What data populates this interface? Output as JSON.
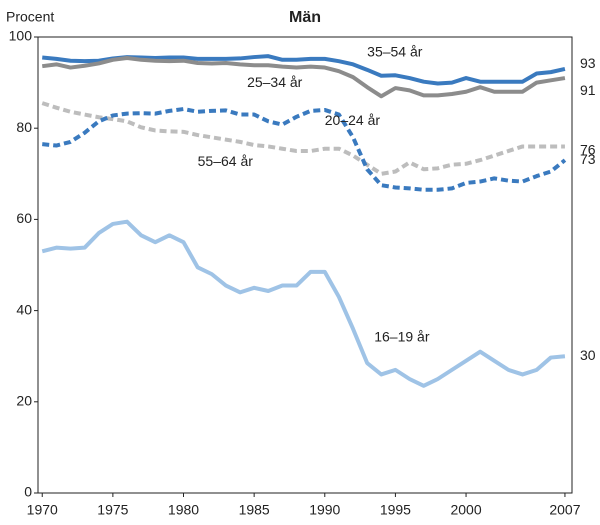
{
  "chart_data": {
    "type": "line",
    "title": "Män",
    "y_label": "Procent",
    "x": [
      1970,
      1971,
      1972,
      1973,
      1974,
      1975,
      1976,
      1977,
      1978,
      1979,
      1980,
      1981,
      1982,
      1983,
      1984,
      1985,
      1986,
      1987,
      1988,
      1989,
      1990,
      1991,
      1992,
      1993,
      1994,
      1995,
      1996,
      1997,
      1998,
      1999,
      2000,
      2001,
      2002,
      2003,
      2004,
      2005,
      2006,
      2007
    ],
    "xlim": [
      1969.7,
      2007.5
    ],
    "xticks": [
      1970,
      1975,
      1980,
      1985,
      1990,
      1995,
      2000,
      2007
    ],
    "ylim": [
      0,
      100
    ],
    "yticks": [
      0,
      20,
      40,
      60,
      80,
      100
    ],
    "series": [
      {
        "name": "35–54 år",
        "color": "#3a7abf",
        "dashed": false,
        "values": [
          95.5,
          95.2,
          94.8,
          94.7,
          94.8,
          95.3,
          95.6,
          95.5,
          95.4,
          95.5,
          95.5,
          95.2,
          95.2,
          95.2,
          95.3,
          95.6,
          95.8,
          95.0,
          95.0,
          95.2,
          95.2,
          94.7,
          94.0,
          92.8,
          91.5,
          91.6,
          91.0,
          90.2,
          89.8,
          90.0,
          91.0,
          90.2,
          90.2,
          90.2,
          90.2,
          92.0,
          92.3,
          93
        ]
      },
      {
        "name": "25–34 år",
        "color": "#8c8c8c",
        "dashed": false,
        "values": [
          93.6,
          94.0,
          93.3,
          93.7,
          94.2,
          95.0,
          95.4,
          95.0,
          94.8,
          94.7,
          94.8,
          94.3,
          94.2,
          94.3,
          94.0,
          93.8,
          93.8,
          93.5,
          93.3,
          93.5,
          93.3,
          92.5,
          91.2,
          89.0,
          87.0,
          88.8,
          88.3,
          87.2,
          87.2,
          87.5,
          88.0,
          89.0,
          88.0,
          88.0,
          88.0,
          90.0,
          90.5,
          91
        ]
      },
      {
        "name": "55–64 år",
        "color": "#bdbdbd",
        "dashed": true,
        "values": [
          85.5,
          84.5,
          83.6,
          83.0,
          82.4,
          82.0,
          81.5,
          80.2,
          79.5,
          79.3,
          79.2,
          78.5,
          78.0,
          77.5,
          77.0,
          76.3,
          76.0,
          75.5,
          75.0,
          75.0,
          75.5,
          75.5,
          74.0,
          72.0,
          70.0,
          70.5,
          72.5,
          71.0,
          71.2,
          72.0,
          72.2,
          73.0,
          74.0,
          75.0,
          76.0,
          76.0,
          76.0,
          76
        ]
      },
      {
        "name": "20–24 år",
        "color": "#3a7abf",
        "dashed": true,
        "values": [
          76.5,
          76.2,
          77.0,
          79.0,
          81.5,
          82.8,
          83.2,
          83.3,
          83.2,
          83.8,
          84.2,
          83.6,
          83.8,
          83.9,
          83.0,
          83.0,
          81.5,
          80.8,
          82.5,
          83.8,
          84.0,
          83.0,
          78.0,
          71.0,
          67.5,
          67.0,
          66.8,
          66.5,
          66.5,
          66.8,
          68.0,
          68.3,
          69.0,
          68.5,
          68.3,
          69.5,
          70.5,
          73
        ]
      },
      {
        "name": "16–19 år",
        "color": "#9fc3e6",
        "dashed": false,
        "values": [
          53,
          53.8,
          53.6,
          53.8,
          57,
          59,
          59.5,
          56.5,
          55,
          56.5,
          55,
          49.5,
          48,
          45.5,
          44,
          45,
          44.3,
          45.5,
          45.5,
          48.5,
          48.5,
          43,
          36,
          28.5,
          26,
          27,
          25,
          23.5,
          25,
          27,
          29,
          31,
          29,
          27,
          26,
          27,
          29.7,
          30
        ]
      }
    ]
  }
}
